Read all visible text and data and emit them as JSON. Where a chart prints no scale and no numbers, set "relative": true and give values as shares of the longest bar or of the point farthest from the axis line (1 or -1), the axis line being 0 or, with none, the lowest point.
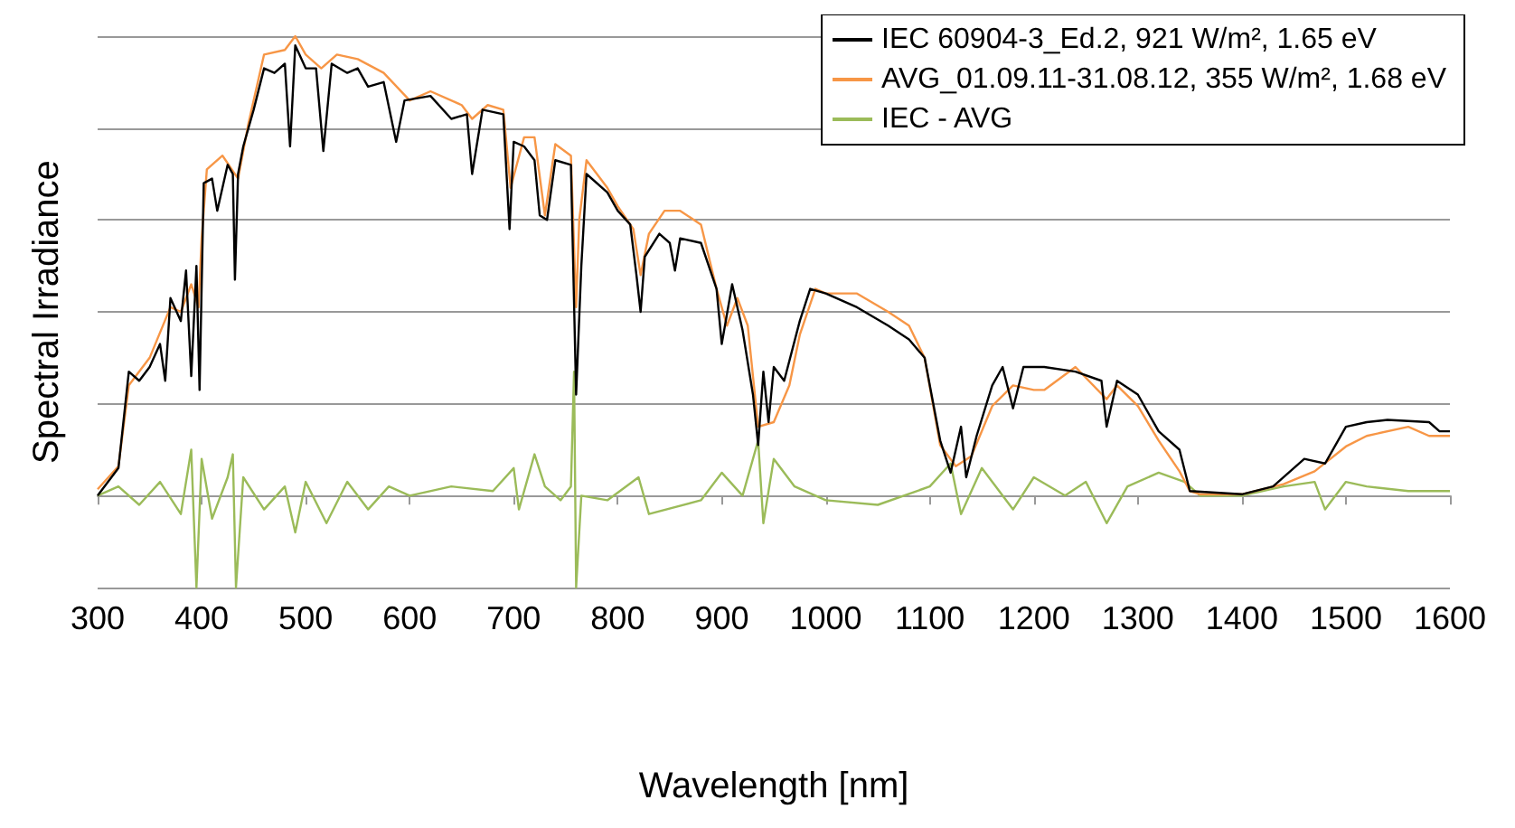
{
  "chart_data": {
    "type": "line",
    "relative": true,
    "xlabel": "Wavelength [nm]",
    "ylabel": "Spectral Irradiance",
    "xlim": [
      300,
      1600
    ],
    "xticks": [
      300,
      400,
      500,
      600,
      700,
      800,
      900,
      1000,
      1100,
      1200,
      1300,
      1400,
      1500,
      1600
    ],
    "grid": "y",
    "legend": "top right",
    "marker": "none",
    "line_style": "solid",
    "series": [
      {
        "name": "IEC 60904-3_Ed.2, 921 W/m², 1.65 eV",
        "color": "#000000",
        "x": [
          300,
          320,
          330,
          340,
          350,
          360,
          365,
          370,
          380,
          385,
          390,
          395,
          398,
          402,
          410,
          415,
          425,
          430,
          432,
          435,
          440,
          450,
          460,
          470,
          480,
          485,
          490,
          500,
          510,
          517,
          525,
          540,
          550,
          560,
          575,
          587,
          595,
          620,
          640,
          655,
          660,
          670,
          690,
          696,
          700,
          710,
          720,
          725,
          732,
          740,
          755,
          760,
          765,
          770,
          790,
          800,
          812,
          818,
          822,
          826,
          840,
          850,
          855,
          860,
          880,
          895,
          900,
          910,
          920,
          930,
          935,
          940,
          945,
          950,
          960,
          975,
          985,
          1000,
          1030,
          1060,
          1080,
          1095,
          1110,
          1120,
          1130,
          1135,
          1145,
          1160,
          1170,
          1180,
          1190,
          1210,
          1240,
          1265,
          1270,
          1280,
          1300,
          1320,
          1340,
          1350,
          1400,
          1430,
          1460,
          1480,
          1500,
          1520,
          1540,
          1580,
          1590,
          1600
        ],
        "values": [
          0.0,
          0.06,
          0.27,
          0.25,
          0.28,
          0.33,
          0.25,
          0.43,
          0.38,
          0.49,
          0.26,
          0.5,
          0.23,
          0.68,
          0.69,
          0.62,
          0.72,
          0.7,
          0.47,
          0.7,
          0.76,
          0.84,
          0.93,
          0.92,
          0.94,
          0.76,
          0.98,
          0.93,
          0.93,
          0.75,
          0.94,
          0.92,
          0.93,
          0.89,
          0.9,
          0.77,
          0.86,
          0.87,
          0.82,
          0.83,
          0.7,
          0.84,
          0.83,
          0.58,
          0.77,
          0.76,
          0.73,
          0.61,
          0.6,
          0.73,
          0.72,
          0.22,
          0.5,
          0.7,
          0.66,
          0.62,
          0.59,
          0.48,
          0.4,
          0.52,
          0.57,
          0.55,
          0.49,
          0.56,
          0.55,
          0.45,
          0.33,
          0.46,
          0.36,
          0.22,
          0.11,
          0.27,
          0.16,
          0.28,
          0.25,
          0.38,
          0.45,
          0.44,
          0.41,
          0.37,
          0.34,
          0.3,
          0.12,
          0.05,
          0.15,
          0.04,
          0.13,
          0.24,
          0.28,
          0.19,
          0.28,
          0.28,
          0.27,
          0.25,
          0.15,
          0.25,
          0.22,
          0.14,
          0.1,
          0.01,
          0.003,
          0.02,
          0.08,
          0.07,
          0.15,
          0.16,
          0.165,
          0.16,
          0.14,
          0.14
        ]
      },
      {
        "name": "AVG_01.09.11-31.08.12, 355 W/m², 1.68 eV",
        "color": "#f79646",
        "x": [
          300,
          320,
          330,
          350,
          370,
          380,
          390,
          397,
          400,
          405,
          420,
          435,
          445,
          460,
          480,
          490,
          500,
          515,
          530,
          550,
          575,
          600,
          620,
          650,
          660,
          675,
          690,
          697,
          710,
          720,
          730,
          740,
          755,
          760,
          763,
          770,
          790,
          800,
          815,
          822,
          830,
          845,
          860,
          880,
          895,
          905,
          915,
          925,
          935,
          950,
          965,
          975,
          990,
          1000,
          1030,
          1060,
          1080,
          1095,
          1110,
          1125,
          1140,
          1160,
          1180,
          1200,
          1210,
          1240,
          1270,
          1280,
          1300,
          1320,
          1340,
          1350,
          1360,
          1400,
          1440,
          1470,
          1500,
          1520,
          1560,
          1580,
          1600
        ],
        "values": [
          0.014,
          0.064,
          0.24,
          0.3,
          0.41,
          0.4,
          0.46,
          0.41,
          0.56,
          0.71,
          0.74,
          0.69,
          0.81,
          0.96,
          0.97,
          1.0,
          0.96,
          0.93,
          0.96,
          0.95,
          0.92,
          0.86,
          0.88,
          0.85,
          0.82,
          0.85,
          0.84,
          0.67,
          0.78,
          0.78,
          0.61,
          0.765,
          0.74,
          0.41,
          0.6,
          0.73,
          0.67,
          0.63,
          0.58,
          0.48,
          0.57,
          0.62,
          0.62,
          0.59,
          0.45,
          0.37,
          0.43,
          0.37,
          0.15,
          0.16,
          0.24,
          0.35,
          0.45,
          0.44,
          0.44,
          0.4,
          0.37,
          0.3,
          0.11,
          0.064,
          0.086,
          0.195,
          0.24,
          0.23,
          0.23,
          0.28,
          0.21,
          0.24,
          0.195,
          0.12,
          0.053,
          0.01,
          0.003,
          0.003,
          0.025,
          0.053,
          0.107,
          0.13,
          0.15,
          0.13,
          0.13
        ]
      },
      {
        "name": "IEC - AVG",
        "color": "#9bbb59",
        "x": [
          300,
          320,
          340,
          360,
          380,
          390,
          395,
          400,
          410,
          425,
          430,
          433,
          440,
          460,
          480,
          490,
          500,
          520,
          540,
          560,
          580,
          600,
          640,
          680,
          700,
          705,
          720,
          730,
          745,
          755,
          758,
          760,
          765,
          790,
          820,
          830,
          880,
          900,
          920,
          935,
          940,
          950,
          970,
          1000,
          1050,
          1100,
          1120,
          1130,
          1150,
          1180,
          1200,
          1230,
          1250,
          1270,
          1290,
          1320,
          1345,
          1360,
          1400,
          1440,
          1470,
          1480,
          1500,
          1520,
          1560,
          1600
        ],
        "values": [
          0,
          0.02,
          -0.02,
          0.03,
          -0.04,
          0.1,
          -0.2,
          0.08,
          -0.05,
          0.04,
          0.09,
          -0.2,
          0.04,
          -0.03,
          0.02,
          -0.08,
          0.03,
          -0.06,
          0.03,
          -0.03,
          0.02,
          0,
          0.02,
          0.01,
          0.06,
          -0.03,
          0.09,
          0.02,
          -0.01,
          0.02,
          0.27,
          -0.2,
          0,
          -0.01,
          0.04,
          -0.04,
          -0.01,
          0.05,
          0,
          0.12,
          -0.06,
          0.08,
          0.02,
          -0.01,
          -0.02,
          0.02,
          0.07,
          -0.04,
          0.06,
          -0.03,
          0.04,
          0,
          0.03,
          -0.06,
          0.02,
          0.05,
          0.03,
          0,
          0,
          0.02,
          0.03,
          -0.03,
          0.03,
          0.02,
          0.01,
          0.01
        ]
      }
    ]
  }
}
